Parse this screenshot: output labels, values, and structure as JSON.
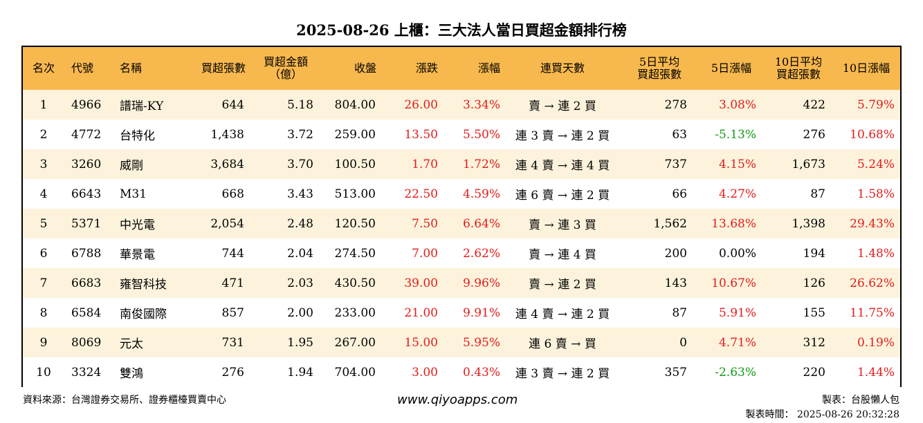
{
  "title": "2025-08-26 上櫃：三大法人當日買超金額排行榜",
  "headers": {
    "rank": "名次",
    "code": "代號",
    "name": "名稱",
    "shares": "買超張數",
    "amount": "買超金額（億）",
    "close": "收盤",
    "change": "漲跌",
    "pct": "漲幅",
    "streak": "連買天數",
    "avg5": "5日平均買超張數",
    "chg5": "5日漲幅",
    "avg10": "10日平均買超張數",
    "chg10": "10日漲幅"
  },
  "rows": [
    {
      "rank": "1",
      "code": "4966",
      "name": "譜瑞-KY",
      "shares": "644",
      "amount": "5.18",
      "close": "804.00",
      "change": "26.00",
      "pct": "3.34%",
      "streak": "賣 → 連 2 買",
      "avg5": "278",
      "chg5": "3.08%",
      "avg10": "422",
      "chg10": "5.79%",
      "chg5_color": "red",
      "chg10_color": "red"
    },
    {
      "rank": "2",
      "code": "4772",
      "name": "台特化",
      "shares": "1,438",
      "amount": "3.72",
      "close": "259.00",
      "change": "13.50",
      "pct": "5.50%",
      "streak": "連 3 賣 → 連 2 買",
      "avg5": "63",
      "chg5": "-5.13%",
      "avg10": "276",
      "chg10": "10.68%",
      "chg5_color": "green",
      "chg10_color": "red"
    },
    {
      "rank": "3",
      "code": "3260",
      "name": "威剛",
      "shares": "3,684",
      "amount": "3.70",
      "close": "100.50",
      "change": "1.70",
      "pct": "1.72%",
      "streak": "連 4 賣 → 連 4 買",
      "avg5": "737",
      "chg5": "4.15%",
      "avg10": "1,673",
      "chg10": "5.24%",
      "chg5_color": "red",
      "chg10_color": "red"
    },
    {
      "rank": "4",
      "code": "6643",
      "name": "M31",
      "shares": "668",
      "amount": "3.43",
      "close": "513.00",
      "change": "22.50",
      "pct": "4.59%",
      "streak": "連 6 賣 → 連 2 買",
      "avg5": "66",
      "chg5": "4.27%",
      "avg10": "87",
      "chg10": "1.58%",
      "chg5_color": "red",
      "chg10_color": "red"
    },
    {
      "rank": "5",
      "code": "5371",
      "name": "中光電",
      "shares": "2,054",
      "amount": "2.48",
      "close": "120.50",
      "change": "7.50",
      "pct": "6.64%",
      "streak": "賣 → 連 3 買",
      "avg5": "1,562",
      "chg5": "13.68%",
      "avg10": "1,398",
      "chg10": "29.43%",
      "chg5_color": "red",
      "chg10_color": "red"
    },
    {
      "rank": "6",
      "code": "6788",
      "name": "華景電",
      "shares": "744",
      "amount": "2.04",
      "close": "274.50",
      "change": "7.00",
      "pct": "2.62%",
      "streak": "賣 → 連 4 買",
      "avg5": "200",
      "chg5": "0.00%",
      "avg10": "194",
      "chg10": "1.48%",
      "chg5_color": "black",
      "chg10_color": "red"
    },
    {
      "rank": "7",
      "code": "6683",
      "name": "雍智科技",
      "shares": "471",
      "amount": "2.03",
      "close": "430.50",
      "change": "39.00",
      "pct": "9.96%",
      "streak": "賣 → 連 2 買",
      "avg5": "143",
      "chg5": "10.67%",
      "avg10": "126",
      "chg10": "26.62%",
      "chg5_color": "red",
      "chg10_color": "red"
    },
    {
      "rank": "8",
      "code": "6584",
      "name": "南俊國際",
      "shares": "857",
      "amount": "2.00",
      "close": "233.00",
      "change": "21.00",
      "pct": "9.91%",
      "streak": "連 4 賣 → 連 2 買",
      "avg5": "87",
      "chg5": "5.91%",
      "avg10": "155",
      "chg10": "11.75%",
      "chg5_color": "red",
      "chg10_color": "red"
    },
    {
      "rank": "9",
      "code": "8069",
      "name": "元太",
      "shares": "731",
      "amount": "1.95",
      "close": "267.00",
      "change": "15.00",
      "pct": "5.95%",
      "streak": "連 6 賣 → 買",
      "avg5": "0",
      "chg5": "4.71%",
      "avg10": "312",
      "chg10": "0.19%",
      "chg5_color": "red",
      "chg10_color": "red"
    },
    {
      "rank": "10",
      "code": "3324",
      "name": "雙鴻",
      "shares": "276",
      "amount": "1.94",
      "close": "704.00",
      "change": "3.00",
      "pct": "0.43%",
      "streak": "連 3 賣 → 連 2 買",
      "avg5": "357",
      "chg5": "-2.63%",
      "avg10": "220",
      "chg10": "1.44%",
      "chg5_color": "green",
      "chg10_color": "red"
    }
  ],
  "footer": {
    "source": "資料來源：台灣證券交易所、證券櫃檯買賣中心",
    "site": "www.qiyoapps.com",
    "maker": "製表：台股懶人包",
    "time": "製表時間： 2025-08-26 20:32:28"
  },
  "colors": {
    "header_bg": "#f7b84e",
    "odd_row_bg": "#fdf3dc",
    "up": "#e31b1b",
    "down": "#149a14"
  }
}
